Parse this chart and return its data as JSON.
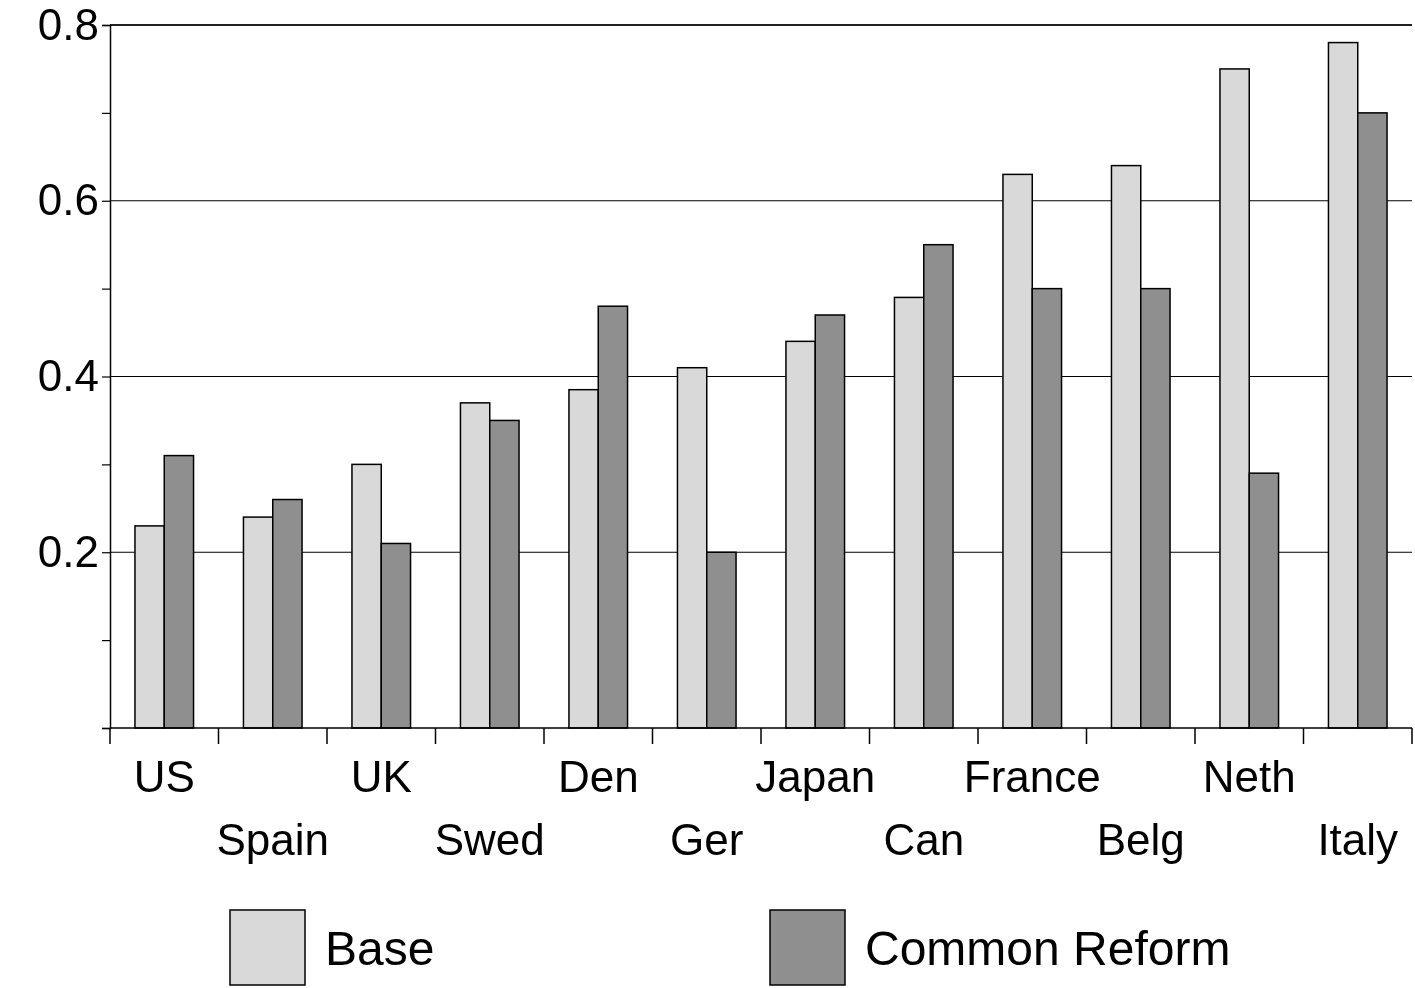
{
  "chart_data": {
    "type": "bar",
    "categories": [
      "US",
      "Spain",
      "UK",
      "Swed",
      "Den",
      "Ger",
      "Japan",
      "Can",
      "France",
      "Belg",
      "Neth",
      "Italy"
    ],
    "series": [
      {
        "name": "Base",
        "color": "#d9d9d9",
        "values": [
          0.23,
          0.24,
          0.3,
          0.37,
          0.385,
          0.41,
          0.44,
          0.49,
          0.63,
          0.64,
          0.75,
          0.78
        ]
      },
      {
        "name": "Common Reform",
        "color": "#8f8f8f",
        "values": [
          0.31,
          0.26,
          0.21,
          0.35,
          0.48,
          0.2,
          0.47,
          0.55,
          0.5,
          0.5,
          0.29,
          0.7
        ]
      }
    ],
    "ylim": [
      0,
      0.8
    ],
    "yticks": [
      {
        "value": 0,
        "label": null
      },
      {
        "value": 0.1,
        "label": null
      },
      0.2,
      {
        "value": 0.3,
        "label": null
      },
      0.4,
      {
        "value": 0.5,
        "label": null
      },
      0.6,
      {
        "value": 0.7,
        "label": null
      },
      0.8
    ],
    "grid": "y",
    "legend": "bottom"
  }
}
